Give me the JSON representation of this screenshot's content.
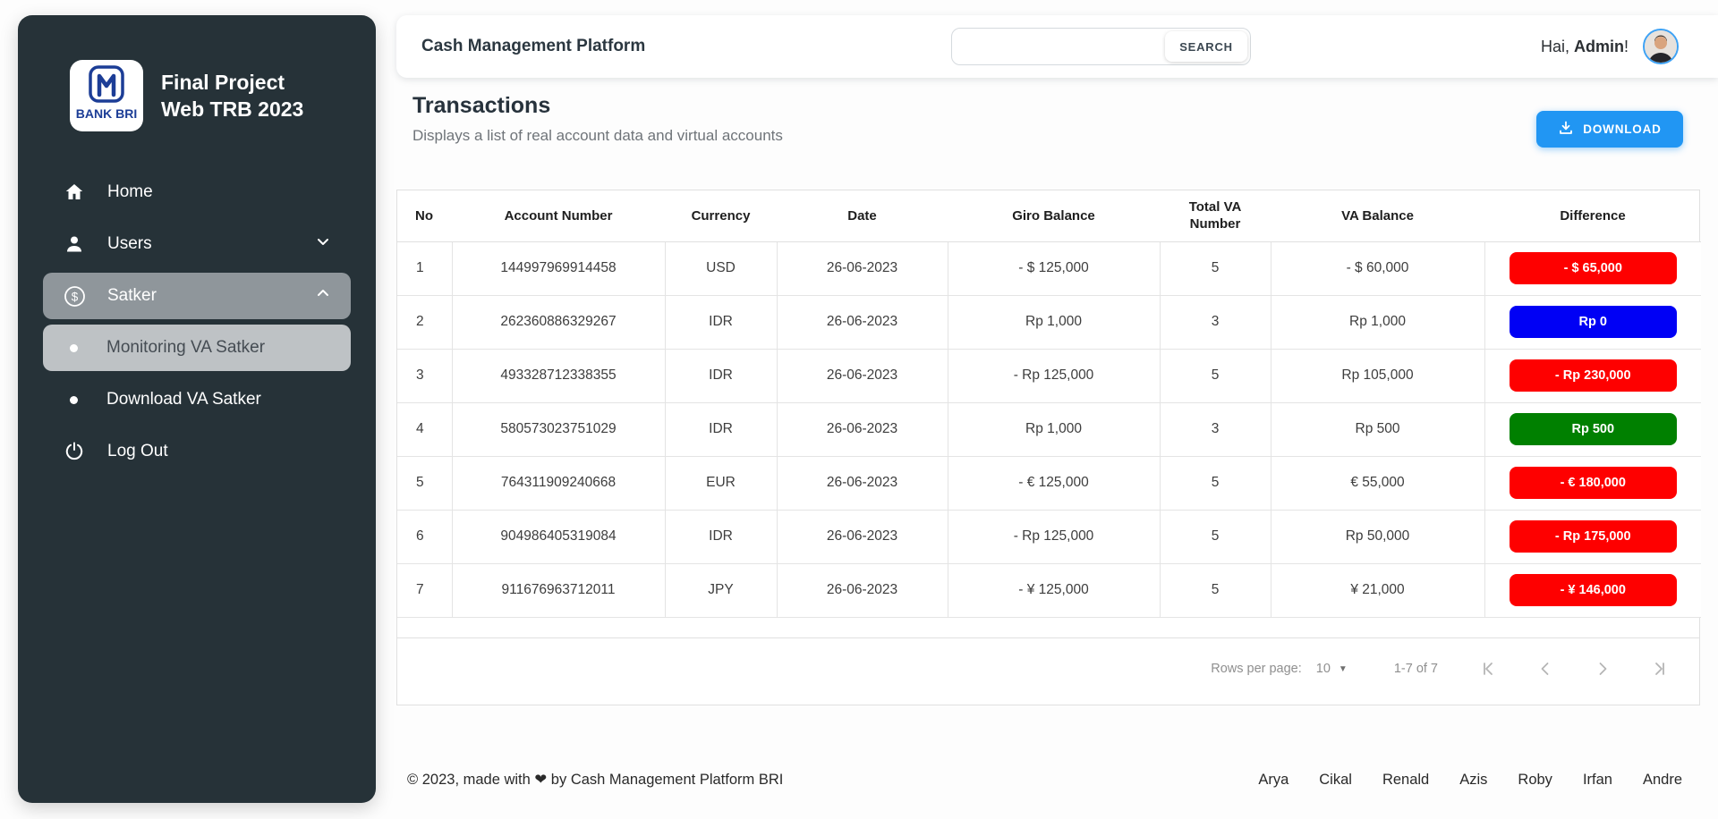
{
  "app": {
    "title": "Cash Management Platform",
    "greeting_prefix": "Hai,",
    "greeting_name": "Admin",
    "greeting_suffix": "!"
  },
  "search": {
    "value": "",
    "placeholder": "",
    "button_label": "SEARCH"
  },
  "sidebar": {
    "logo_text": "BANK BRI",
    "title_line1": "Final Project",
    "title_line2": "Web TRB 2023",
    "items": [
      {
        "label": "Home"
      },
      {
        "label": "Users"
      },
      {
        "label": "Satker"
      },
      {
        "label": "Monitoring VA Satker"
      },
      {
        "label": "Download VA Satker"
      },
      {
        "label": "Log Out"
      }
    ]
  },
  "page": {
    "title": "Transactions",
    "subtitle": "Displays a list of real account data and virtual accounts",
    "download_label": "DOWNLOAD"
  },
  "table": {
    "columns": [
      "No",
      "Account Number",
      "Currency",
      "Date",
      "Giro Balance",
      "Total VA Number",
      "VA Balance",
      "Difference"
    ],
    "rows": [
      {
        "no": "1",
        "account": "144997969914458",
        "currency": "USD",
        "date": "26-06-2023",
        "giro": "- $ 125,000",
        "total_va": "5",
        "va_balance": "- $ 60,000",
        "difference": "- $ 65,000",
        "diff_color": "#fe0000"
      },
      {
        "no": "2",
        "account": "262360886329267",
        "currency": "IDR",
        "date": "26-06-2023",
        "giro": "Rp 1,000",
        "total_va": "3",
        "va_balance": "Rp 1,000",
        "difference": "Rp 0",
        "diff_color": "#0000f5"
      },
      {
        "no": "3",
        "account": "493328712338355",
        "currency": "IDR",
        "date": "26-06-2023",
        "giro": "- Rp 125,000",
        "total_va": "5",
        "va_balance": "Rp 105,000",
        "difference": "- Rp 230,000",
        "diff_color": "#fe0000"
      },
      {
        "no": "4",
        "account": "580573023751029",
        "currency": "IDR",
        "date": "26-06-2023",
        "giro": "Rp 1,000",
        "total_va": "3",
        "va_balance": "Rp 500",
        "difference": "Rp 500",
        "diff_color": "#008000"
      },
      {
        "no": "5",
        "account": "764311909240668",
        "currency": "EUR",
        "date": "26-06-2023",
        "giro": "- € 125,000",
        "total_va": "5",
        "va_balance": "€ 55,000",
        "difference": "- € 180,000",
        "diff_color": "#fe0000"
      },
      {
        "no": "6",
        "account": "904986405319084",
        "currency": "IDR",
        "date": "26-06-2023",
        "giro": "- Rp 125,000",
        "total_va": "5",
        "va_balance": "Rp 50,000",
        "difference": "- Rp 175,000",
        "diff_color": "#fe0000"
      },
      {
        "no": "7",
        "account": "911676963712011",
        "currency": "JPY",
        "date": "26-06-2023",
        "giro": "- ¥ 125,000",
        "total_va": "5",
        "va_balance": "¥ 21,000",
        "difference": "- ¥ 146,000",
        "diff_color": "#fe0000"
      }
    ]
  },
  "pagination": {
    "rows_per_page_label": "Rows per page:",
    "rows_per_page_value": "10",
    "range": "1-7 of 7"
  },
  "footer": {
    "copyright": "© 2023, made with ❤ by Cash Management Platform BRI",
    "names": [
      "Arya",
      "Cikal",
      "Renald",
      "Azis",
      "Roby",
      "Irfan",
      "Andre"
    ]
  },
  "colors": {
    "accent_blue": "#2196f3",
    "badge_red": "#fe0000",
    "badge_blue": "#0000f5",
    "badge_green": "#008000",
    "sidebar_bg": "#263238"
  }
}
